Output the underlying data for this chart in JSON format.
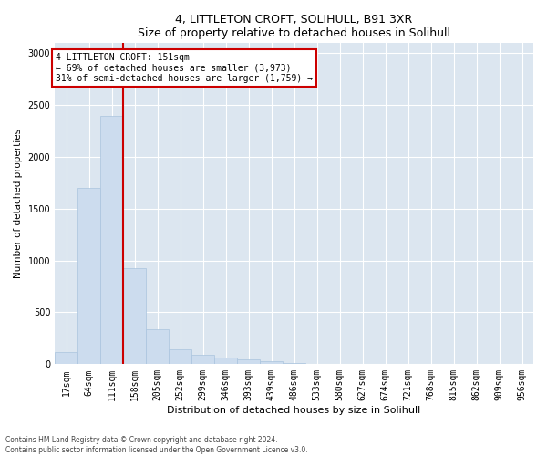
{
  "title1": "4, LITTLETON CROFT, SOLIHULL, B91 3XR",
  "title2": "Size of property relative to detached houses in Solihull",
  "xlabel": "Distribution of detached houses by size in Solihull",
  "ylabel": "Number of detached properties",
  "categories": [
    "17sqm",
    "64sqm",
    "111sqm",
    "158sqm",
    "205sqm",
    "252sqm",
    "299sqm",
    "346sqm",
    "393sqm",
    "439sqm",
    "486sqm",
    "533sqm",
    "580sqm",
    "627sqm",
    "674sqm",
    "721sqm",
    "768sqm",
    "815sqm",
    "862sqm",
    "909sqm",
    "956sqm"
  ],
  "values": [
    120,
    1700,
    2400,
    930,
    340,
    145,
    90,
    65,
    45,
    30,
    15,
    5,
    5,
    0,
    0,
    0,
    0,
    0,
    0,
    0,
    0
  ],
  "bar_color": "#ccdcee",
  "bar_edge_color": "#aac4de",
  "vline_color": "#cc0000",
  "annotation_text": "4 LITTLETON CROFT: 151sqm\n← 69% of detached houses are smaller (3,973)\n31% of semi-detached houses are larger (1,759) →",
  "annotation_box_color": "white",
  "annotation_box_edge": "#cc0000",
  "ylim": [
    0,
    3100
  ],
  "background_color": "#dce6f0",
  "footer1": "Contains HM Land Registry data © Crown copyright and database right 2024.",
  "footer2": "Contains public sector information licensed under the Open Government Licence v3.0."
}
